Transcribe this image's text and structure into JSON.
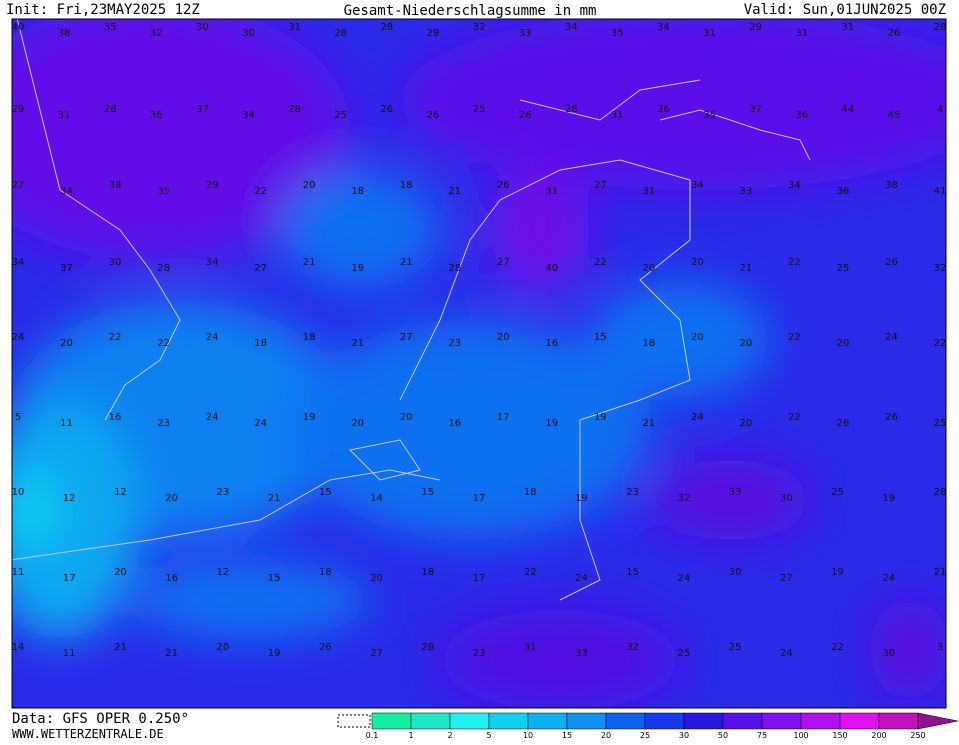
{
  "header": {
    "init": "Init: Fri,23MAY2025 12Z",
    "title": "Gesamt-Niederschlagsumme in mm",
    "valid": "Valid: Sun,01JUN2025 00Z"
  },
  "footer": {
    "source": "Data: GFS OPER 0.250°",
    "website": "WWW.WETTERZENTRALE.DE"
  },
  "map_labels": [
    [
      40,
      38,
      35,
      32,
      30,
      30,
      31,
      28,
      28,
      29,
      32,
      33,
      34,
      35,
      34,
      31,
      29,
      31,
      31,
      26,
      28
    ],
    [
      29,
      31,
      28,
      36,
      37,
      34,
      28,
      25,
      26,
      26,
      25,
      26,
      26,
      31,
      36,
      35,
      37,
      36,
      44,
      45,
      4
    ],
    [
      27,
      34,
      38,
      35,
      29,
      22,
      20,
      18,
      18,
      21,
      26,
      31,
      27,
      31,
      34,
      33,
      34,
      36,
      38,
      41
    ],
    [
      34,
      37,
      30,
      28,
      34,
      27,
      21,
      19,
      21,
      28,
      27,
      40,
      22,
      20,
      20,
      21,
      22,
      25,
      26,
      32
    ],
    [
      24,
      20,
      22,
      22,
      24,
      18,
      18,
      21,
      27,
      23,
      20,
      16,
      15,
      18,
      20,
      20,
      22,
      20,
      24,
      22
    ],
    [
      5,
      11,
      16,
      23,
      24,
      24,
      19,
      20,
      20,
      16,
      17,
      19,
      19,
      21,
      24,
      20,
      22,
      26,
      26,
      25
    ],
    [
      10,
      12,
      12,
      20,
      23,
      21,
      15,
      14,
      15,
      17,
      18,
      19,
      23,
      32,
      33,
      30,
      25,
      19,
      28
    ],
    [
      11,
      17,
      20,
      16,
      12,
      15,
      18,
      20,
      18,
      17,
      22,
      24,
      15,
      24,
      30,
      27,
      19,
      24,
      21
    ],
    [
      14,
      11,
      21,
      21,
      20,
      19,
      26,
      27,
      28,
      23,
      31,
      33,
      32,
      25,
      25,
      24,
      22,
      30,
      3
    ]
  ],
  "legend": {
    "labels": [
      0.1,
      1,
      2,
      5,
      10,
      15,
      20,
      25,
      30,
      50,
      75,
      100,
      150,
      200,
      250
    ],
    "colors": [
      "#14f0a0",
      "#1ee8c8",
      "#22f0f0",
      "#10d0f0",
      "#10b0f0",
      "#1090f0",
      "#1060f0",
      "#1838f0",
      "#2818e0",
      "#5810e8",
      "#8010f0",
      "#b010f0",
      "#e010f0",
      "#c010c0",
      "#901090"
    ]
  }
}
